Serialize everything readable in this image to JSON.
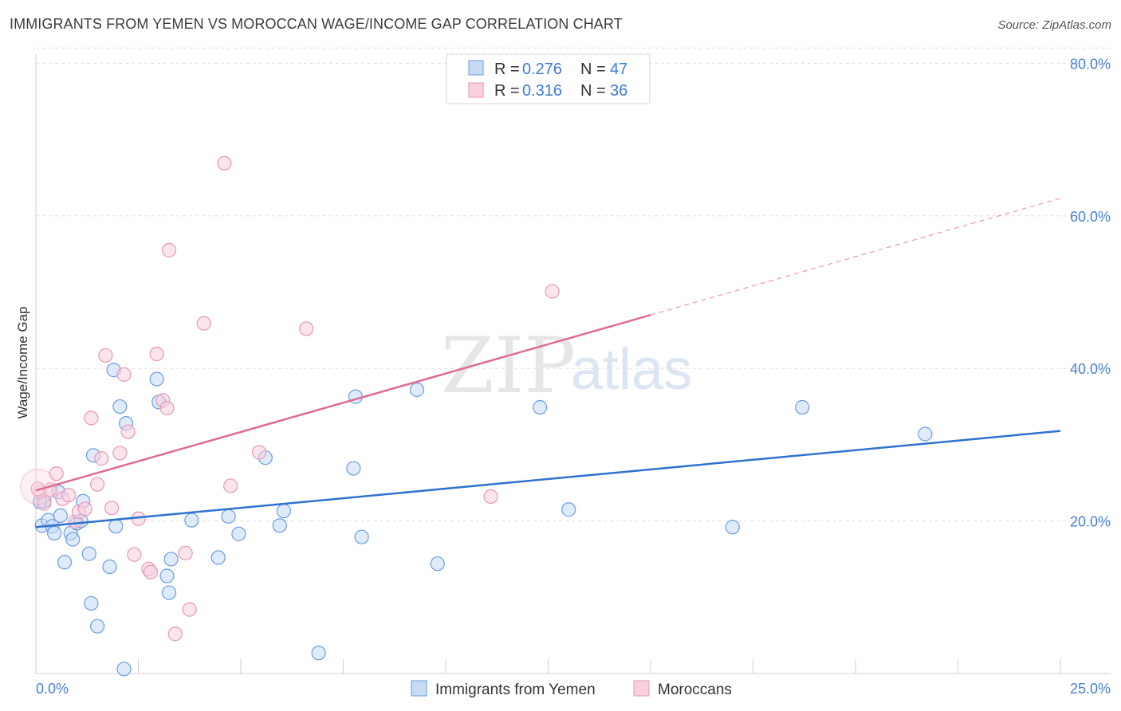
{
  "header": {
    "title": "IMMIGRANTS FROM YEMEN VS MOROCCAN WAGE/INCOME GAP CORRELATION CHART",
    "source": "Source: ZipAtlas.com"
  },
  "watermark": {
    "zip": "ZIP",
    "atlas": "atlas"
  },
  "colors": {
    "blue": "#6a9de0",
    "blue_fill": "#c7dbf5",
    "blue_line": "#2f72d0",
    "pink": "#e897b4",
    "pink_fill": "#f8d0de",
    "pink_line": "#e06a94",
    "grid": "#dedede",
    "axis_label": "#4a7fd0"
  },
  "legend": {
    "rows": [
      {
        "r_label": "R =",
        "r_value": "0.276",
        "n_label": "N =",
        "n_value": "47"
      },
      {
        "r_label": "R =",
        "r_value": "0.316",
        "n_label": "N =",
        "n_value": "36"
      }
    ]
  },
  "bottom_legend": {
    "items": [
      {
        "label": "Immigrants from Yemen"
      },
      {
        "label": "Moroccans"
      }
    ]
  },
  "chart_data": {
    "type": "scatter",
    "title": "IMMIGRANTS FROM YEMEN VS MOROCCAN WAGE/INCOME GAP CORRELATION CHART",
    "xlabel": "",
    "ylabel": "Wage/Income Gap",
    "xlim": [
      0,
      25
    ],
    "ylim": [
      0,
      82
    ],
    "x_tick_labels": [
      "0.0%",
      "25.0%"
    ],
    "y_tick_labels": [
      "20.0%",
      "40.0%",
      "60.0%",
      "80.0%"
    ],
    "y_ticks": [
      20,
      40,
      60,
      80
    ],
    "series": [
      {
        "name": "Immigrants from Yemen",
        "R": 0.276,
        "N": 47,
        "trend": {
          "x": [
            0,
            25
          ],
          "y": [
            19.2,
            31.8
          ]
        },
        "points": [
          [
            0.15,
            19.4
          ],
          [
            0.2,
            22.6
          ],
          [
            0.3,
            20.1
          ],
          [
            0.4,
            19.3
          ],
          [
            0.45,
            18.4
          ],
          [
            0.55,
            23.8
          ],
          [
            0.6,
            20.7
          ],
          [
            0.7,
            14.6
          ],
          [
            0.85,
            18.4
          ],
          [
            0.9,
            17.6
          ],
          [
            1.0,
            19.7
          ],
          [
            1.1,
            20.0
          ],
          [
            1.15,
            22.6
          ],
          [
            1.3,
            15.7
          ],
          [
            1.35,
            9.2
          ],
          [
            1.4,
            28.6
          ],
          [
            1.5,
            6.2
          ],
          [
            1.8,
            14.0
          ],
          [
            1.9,
            39.8
          ],
          [
            1.95,
            19.3
          ],
          [
            2.05,
            35.0
          ],
          [
            2.2,
            32.8
          ],
          [
            2.15,
            0.6
          ],
          [
            2.95,
            38.6
          ],
          [
            3.0,
            35.6
          ],
          [
            3.2,
            12.8
          ],
          [
            3.25,
            10.6
          ],
          [
            3.3,
            15.0
          ],
          [
            3.8,
            20.1
          ],
          [
            4.45,
            15.2
          ],
          [
            4.7,
            20.6
          ],
          [
            4.95,
            18.3
          ],
          [
            5.6,
            28.3
          ],
          [
            5.95,
            19.4
          ],
          [
            6.05,
            21.3
          ],
          [
            6.9,
            2.7
          ],
          [
            7.75,
            26.9
          ],
          [
            7.8,
            36.3
          ],
          [
            7.95,
            17.9
          ],
          [
            9.3,
            37.2
          ],
          [
            9.8,
            14.4
          ],
          [
            12.3,
            34.9
          ],
          [
            13.0,
            21.5
          ],
          [
            17.0,
            19.2
          ],
          [
            18.7,
            34.9
          ],
          [
            21.7,
            31.4
          ],
          [
            0.1,
            22.5
          ]
        ]
      },
      {
        "name": "Moroccans",
        "R": 0.316,
        "N": 36,
        "trend": {
          "x": [
            0,
            15
          ],
          "y": [
            24.0,
            47.0
          ]
        },
        "trend_extension": {
          "x": [
            15,
            25
          ],
          "y": [
            47.0,
            62.3
          ]
        },
        "points": [
          [
            0.1,
            23.8
          ],
          [
            0.2,
            22.3
          ],
          [
            0.35,
            24.1
          ],
          [
            0.5,
            26.2
          ],
          [
            0.65,
            22.9
          ],
          [
            0.8,
            23.4
          ],
          [
            0.95,
            19.9
          ],
          [
            1.05,
            21.2
          ],
          [
            1.2,
            21.6
          ],
          [
            1.35,
            33.5
          ],
          [
            1.5,
            24.8
          ],
          [
            1.6,
            28.2
          ],
          [
            1.7,
            41.7
          ],
          [
            1.85,
            21.7
          ],
          [
            2.05,
            28.9
          ],
          [
            2.15,
            39.2
          ],
          [
            2.25,
            31.7
          ],
          [
            2.4,
            15.6
          ],
          [
            2.5,
            20.3
          ],
          [
            2.75,
            13.7
          ],
          [
            2.8,
            13.3
          ],
          [
            2.95,
            41.9
          ],
          [
            3.1,
            35.8
          ],
          [
            3.2,
            34.8
          ],
          [
            3.25,
            55.5
          ],
          [
            3.4,
            5.2
          ],
          [
            3.65,
            15.8
          ],
          [
            3.75,
            8.4
          ],
          [
            4.1,
            45.9
          ],
          [
            4.6,
            66.9
          ],
          [
            4.75,
            24.6
          ],
          [
            5.45,
            29.0
          ],
          [
            6.6,
            45.2
          ],
          [
            11.1,
            23.2
          ],
          [
            12.6,
            50.1
          ],
          [
            0.05,
            24.2
          ]
        ]
      }
    ]
  }
}
